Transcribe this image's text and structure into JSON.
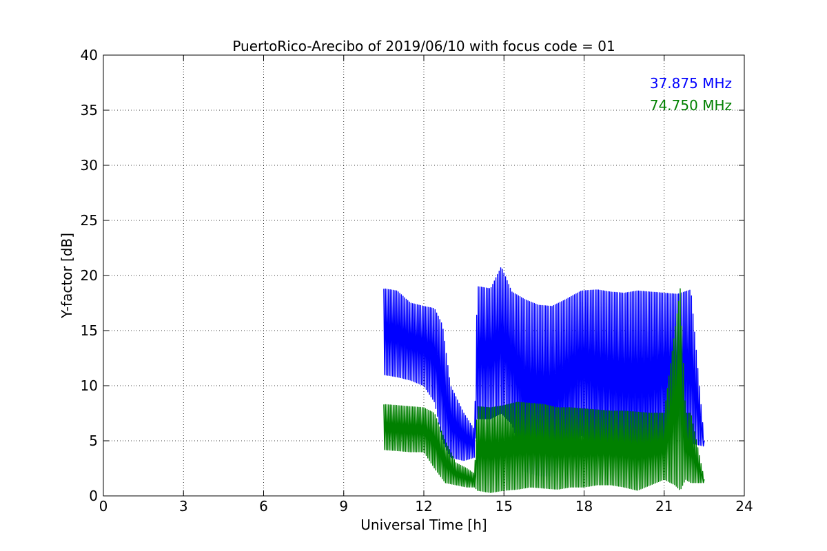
{
  "chart_data": {
    "type": "line",
    "title": "PuertoRico-Arecibo of 2019/06/10 with focus code = 01",
    "xlabel": "Universal Time [h]",
    "ylabel": "Y-factor [dB]",
    "xlim": [
      0,
      24
    ],
    "ylim": [
      0,
      40
    ],
    "xticks": [
      0,
      3,
      6,
      9,
      12,
      15,
      18,
      21,
      24
    ],
    "yticks": [
      0,
      5,
      10,
      15,
      20,
      25,
      30,
      35,
      40
    ],
    "grid": true,
    "legend_position": "top-right",
    "series": [
      {
        "name": "37.875 MHz",
        "color": "#0000ff",
        "envelope": [
          {
            "x": 10.5,
            "low": 11.0,
            "high": 18.8
          },
          {
            "x": 11.0,
            "low": 10.8,
            "high": 18.6
          },
          {
            "x": 11.5,
            "low": 10.5,
            "high": 17.5
          },
          {
            "x": 12.0,
            "low": 10.0,
            "high": 17.2
          },
          {
            "x": 12.4,
            "low": 8.5,
            "high": 17.0
          },
          {
            "x": 12.7,
            "low": 5.0,
            "high": 15.5
          },
          {
            "x": 13.0,
            "low": 3.5,
            "high": 10.0
          },
          {
            "x": 13.5,
            "low": 3.2,
            "high": 7.5
          },
          {
            "x": 13.9,
            "low": 3.5,
            "high": 6.0
          },
          {
            "x": 14.0,
            "low": 7.0,
            "high": 19.0
          },
          {
            "x": 14.5,
            "low": 7.0,
            "high": 18.8
          },
          {
            "x": 14.9,
            "low": 7.5,
            "high": 20.8
          },
          {
            "x": 15.3,
            "low": 6.5,
            "high": 18.5
          },
          {
            "x": 15.8,
            "low": 2.2,
            "high": 17.8
          },
          {
            "x": 16.3,
            "low": 1.8,
            "high": 17.3
          },
          {
            "x": 16.8,
            "low": 1.8,
            "high": 17.2
          },
          {
            "x": 17.3,
            "low": 3.5,
            "high": 17.8
          },
          {
            "x": 17.9,
            "low": 5.5,
            "high": 18.6
          },
          {
            "x": 18.5,
            "low": 4.0,
            "high": 18.7
          },
          {
            "x": 19.0,
            "low": 3.5,
            "high": 18.5
          },
          {
            "x": 19.5,
            "low": 3.0,
            "high": 18.4
          },
          {
            "x": 20.0,
            "low": 2.8,
            "high": 18.6
          },
          {
            "x": 20.5,
            "low": 3.0,
            "high": 18.5
          },
          {
            "x": 21.0,
            "low": 4.5,
            "high": 18.4
          },
          {
            "x": 21.5,
            "low": 4.8,
            "high": 18.3
          },
          {
            "x": 22.0,
            "low": 4.8,
            "high": 18.7
          },
          {
            "x": 22.5,
            "low": 4.5,
            "high": 5.0
          }
        ]
      },
      {
        "name": "74.750 MHz",
        "color": "#008000",
        "envelope": [
          {
            "x": 10.5,
            "low": 4.2,
            "high": 8.3
          },
          {
            "x": 11.0,
            "low": 4.1,
            "high": 8.2
          },
          {
            "x": 11.5,
            "low": 4.0,
            "high": 8.1
          },
          {
            "x": 12.0,
            "low": 4.0,
            "high": 8.0
          },
          {
            "x": 12.4,
            "low": 2.5,
            "high": 7.5
          },
          {
            "x": 12.8,
            "low": 1.2,
            "high": 5.0
          },
          {
            "x": 13.2,
            "low": 1.0,
            "high": 3.0
          },
          {
            "x": 13.6,
            "low": 0.8,
            "high": 2.5
          },
          {
            "x": 13.9,
            "low": 0.8,
            "high": 2.0
          },
          {
            "x": 14.0,
            "low": 0.5,
            "high": 8.1
          },
          {
            "x": 14.5,
            "low": 0.3,
            "high": 8.0
          },
          {
            "x": 15.0,
            "low": 0.5,
            "high": 8.2
          },
          {
            "x": 15.5,
            "low": 0.6,
            "high": 8.5
          },
          {
            "x": 16.0,
            "low": 0.8,
            "high": 8.4
          },
          {
            "x": 16.5,
            "low": 0.7,
            "high": 8.3
          },
          {
            "x": 17.0,
            "low": 0.6,
            "high": 8.0
          },
          {
            "x": 17.5,
            "low": 0.8,
            "high": 8.0
          },
          {
            "x": 18.0,
            "low": 0.8,
            "high": 7.9
          },
          {
            "x": 18.5,
            "low": 1.0,
            "high": 7.8
          },
          {
            "x": 19.0,
            "low": 1.0,
            "high": 7.7
          },
          {
            "x": 19.5,
            "low": 0.8,
            "high": 7.7
          },
          {
            "x": 20.0,
            "low": 0.5,
            "high": 7.6
          },
          {
            "x": 20.5,
            "low": 1.0,
            "high": 7.5
          },
          {
            "x": 21.0,
            "low": 1.5,
            "high": 7.5
          },
          {
            "x": 21.4,
            "low": 1.0,
            "high": 15.0
          },
          {
            "x": 21.6,
            "low": 0.5,
            "high": 18.8
          },
          {
            "x": 21.8,
            "low": 1.5,
            "high": 7.5
          },
          {
            "x": 22.0,
            "low": 1.2,
            "high": 7.5
          },
          {
            "x": 22.5,
            "low": 1.2,
            "high": 1.5
          }
        ]
      }
    ]
  }
}
